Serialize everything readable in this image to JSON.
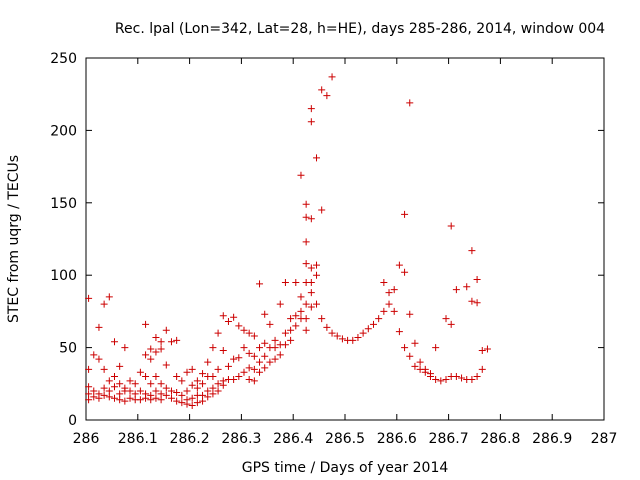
{
  "chart_data": {
    "type": "scatter",
    "title": "Rec. lpal (Lon=342, Lat=28, h=HE), days 285-286, 2014, window 004",
    "xlabel": "GPS time / Days of year 2014",
    "ylabel": "STEC from uqrg / TECUs",
    "xlim": [
      286,
      287
    ],
    "ylim": [
      0,
      250
    ],
    "xticks": [
      "286",
      "286.1",
      "286.2",
      "286.3",
      "286.4",
      "286.5",
      "286.6",
      "286.7",
      "286.8",
      "286.9",
      "287"
    ],
    "yticks": [
      "0",
      "50",
      "100",
      "150",
      "200",
      "250"
    ],
    "grid": false,
    "marker": "+",
    "color": "#cc0000",
    "points": [
      [
        286.005,
        84
      ],
      [
        286.005,
        35
      ],
      [
        286.005,
        23
      ],
      [
        286.005,
        18
      ],
      [
        286.005,
        14
      ],
      [
        286.015,
        45
      ],
      [
        286.015,
        20
      ],
      [
        286.015,
        16
      ],
      [
        286.025,
        64
      ],
      [
        286.025,
        42
      ],
      [
        286.025,
        18
      ],
      [
        286.025,
        15
      ],
      [
        286.035,
        80
      ],
      [
        286.035,
        35
      ],
      [
        286.035,
        22
      ],
      [
        286.035,
        17
      ],
      [
        286.045,
        85
      ],
      [
        286.045,
        27
      ],
      [
        286.045,
        20
      ],
      [
        286.045,
        16
      ],
      [
        286.055,
        54
      ],
      [
        286.055,
        30
      ],
      [
        286.055,
        23
      ],
      [
        286.055,
        15
      ],
      [
        286.065,
        37
      ],
      [
        286.065,
        25
      ],
      [
        286.065,
        18
      ],
      [
        286.065,
        14
      ],
      [
        286.075,
        50
      ],
      [
        286.075,
        22
      ],
      [
        286.075,
        20
      ],
      [
        286.075,
        13
      ],
      [
        286.085,
        27
      ],
      [
        286.085,
        20
      ],
      [
        286.085,
        15
      ],
      [
        286.095,
        25
      ],
      [
        286.095,
        18
      ],
      [
        286.095,
        14
      ],
      [
        286.105,
        33
      ],
      [
        286.105,
        20
      ],
      [
        286.105,
        14
      ],
      [
        286.115,
        66
      ],
      [
        286.115,
        45
      ],
      [
        286.115,
        30
      ],
      [
        286.115,
        18
      ],
      [
        286.115,
        15
      ],
      [
        286.125,
        49
      ],
      [
        286.125,
        42
      ],
      [
        286.125,
        25
      ],
      [
        286.125,
        17
      ],
      [
        286.125,
        14
      ],
      [
        286.135,
        57
      ],
      [
        286.135,
        47
      ],
      [
        286.135,
        30
      ],
      [
        286.135,
        20
      ],
      [
        286.135,
        15
      ],
      [
        286.145,
        54
      ],
      [
        286.145,
        49
      ],
      [
        286.145,
        25
      ],
      [
        286.145,
        18
      ],
      [
        286.145,
        14
      ],
      [
        286.155,
        62
      ],
      [
        286.155,
        38
      ],
      [
        286.155,
        22
      ],
      [
        286.155,
        17
      ],
      [
        286.165,
        54
      ],
      [
        286.165,
        20
      ],
      [
        286.165,
        15
      ],
      [
        286.175,
        55
      ],
      [
        286.175,
        30
      ],
      [
        286.175,
        19
      ],
      [
        286.175,
        13
      ],
      [
        286.185,
        27
      ],
      [
        286.185,
        17
      ],
      [
        286.185,
        12
      ],
      [
        286.195,
        33
      ],
      [
        286.195,
        20
      ],
      [
        286.195,
        14
      ],
      [
        286.195,
        11
      ],
      [
        286.205,
        35
      ],
      [
        286.205,
        24
      ],
      [
        286.205,
        15
      ],
      [
        286.205,
        10
      ],
      [
        286.215,
        27
      ],
      [
        286.215,
        22
      ],
      [
        286.215,
        17
      ],
      [
        286.215,
        12
      ],
      [
        286.225,
        32
      ],
      [
        286.225,
        25
      ],
      [
        286.225,
        17
      ],
      [
        286.225,
        13
      ],
      [
        286.235,
        40
      ],
      [
        286.235,
        30
      ],
      [
        286.235,
        20
      ],
      [
        286.235,
        16
      ],
      [
        286.245,
        50
      ],
      [
        286.245,
        30
      ],
      [
        286.245,
        22
      ],
      [
        286.245,
        18
      ],
      [
        286.255,
        60
      ],
      [
        286.255,
        35
      ],
      [
        286.255,
        25
      ],
      [
        286.255,
        20
      ],
      [
        286.265,
        72
      ],
      [
        286.265,
        48
      ],
      [
        286.265,
        27
      ],
      [
        286.265,
        24
      ],
      [
        286.275,
        68
      ],
      [
        286.275,
        37
      ],
      [
        286.275,
        28
      ],
      [
        286.285,
        71
      ],
      [
        286.285,
        42
      ],
      [
        286.285,
        28
      ],
      [
        286.295,
        65
      ],
      [
        286.295,
        43
      ],
      [
        286.295,
        30
      ],
      [
        286.305,
        62
      ],
      [
        286.305,
        50
      ],
      [
        286.305,
        33
      ],
      [
        286.315,
        60
      ],
      [
        286.315,
        46
      ],
      [
        286.315,
        36
      ],
      [
        286.315,
        28
      ],
      [
        286.325,
        58
      ],
      [
        286.325,
        44
      ],
      [
        286.325,
        35
      ],
      [
        286.325,
        27
      ],
      [
        286.335,
        94
      ],
      [
        286.335,
        50
      ],
      [
        286.335,
        40
      ],
      [
        286.335,
        33
      ],
      [
        286.345,
        73
      ],
      [
        286.345,
        53
      ],
      [
        286.345,
        44
      ],
      [
        286.345,
        36
      ],
      [
        286.355,
        66
      ],
      [
        286.355,
        50
      ],
      [
        286.355,
        40
      ],
      [
        286.365,
        55
      ],
      [
        286.365,
        50
      ],
      [
        286.365,
        42
      ],
      [
        286.375,
        80
      ],
      [
        286.375,
        52
      ],
      [
        286.375,
        45
      ],
      [
        286.385,
        95
      ],
      [
        286.385,
        60
      ],
      [
        286.385,
        52
      ],
      [
        286.395,
        70
      ],
      [
        286.395,
        62
      ],
      [
        286.395,
        55
      ],
      [
        286.405,
        95
      ],
      [
        286.405,
        72
      ],
      [
        286.405,
        65
      ],
      [
        286.415,
        169
      ],
      [
        286.415,
        85
      ],
      [
        286.415,
        75
      ],
      [
        286.415,
        70
      ],
      [
        286.425,
        149
      ],
      [
        286.425,
        140
      ],
      [
        286.425,
        123
      ],
      [
        286.425,
        108
      ],
      [
        286.425,
        95
      ],
      [
        286.425,
        80
      ],
      [
        286.425,
        70
      ],
      [
        286.425,
        62
      ],
      [
        286.435,
        215
      ],
      [
        286.435,
        206
      ],
      [
        286.435,
        139
      ],
      [
        286.435,
        105
      ],
      [
        286.435,
        95
      ],
      [
        286.435,
        88
      ],
      [
        286.435,
        78
      ],
      [
        286.445,
        181
      ],
      [
        286.445,
        107
      ],
      [
        286.445,
        100
      ],
      [
        286.445,
        80
      ],
      [
        286.455,
        228
      ],
      [
        286.455,
        145
      ],
      [
        286.455,
        70
      ],
      [
        286.465,
        224
      ],
      [
        286.465,
        64
      ],
      [
        286.475,
        237
      ],
      [
        286.475,
        60
      ],
      [
        286.485,
        58
      ],
      [
        286.495,
        56
      ],
      [
        286.505,
        55
      ],
      [
        286.515,
        55
      ],
      [
        286.525,
        57
      ],
      [
        286.535,
        60
      ],
      [
        286.545,
        63
      ],
      [
        286.555,
        66
      ],
      [
        286.565,
        70
      ],
      [
        286.575,
        75
      ],
      [
        286.575,
        95
      ],
      [
        286.585,
        80
      ],
      [
        286.585,
        88
      ],
      [
        286.595,
        90
      ],
      [
        286.595,
        75
      ],
      [
        286.605,
        107
      ],
      [
        286.605,
        61
      ],
      [
        286.615,
        102
      ],
      [
        286.615,
        142
      ],
      [
        286.615,
        50
      ],
      [
        286.625,
        219
      ],
      [
        286.625,
        73
      ],
      [
        286.625,
        44
      ],
      [
        286.635,
        53
      ],
      [
        286.635,
        37
      ],
      [
        286.645,
        40
      ],
      [
        286.645,
        35
      ],
      [
        286.655,
        35
      ],
      [
        286.655,
        33
      ],
      [
        286.665,
        32
      ],
      [
        286.665,
        30
      ],
      [
        286.675,
        28
      ],
      [
        286.675,
        50
      ],
      [
        286.685,
        27
      ],
      [
        286.695,
        70
      ],
      [
        286.695,
        28
      ],
      [
        286.705,
        66
      ],
      [
        286.705,
        134
      ],
      [
        286.705,
        30
      ],
      [
        286.715,
        90
      ],
      [
        286.715,
        30
      ],
      [
        286.725,
        29
      ],
      [
        286.735,
        92
      ],
      [
        286.735,
        28
      ],
      [
        286.745,
        117
      ],
      [
        286.745,
        82
      ],
      [
        286.745,
        28
      ],
      [
        286.755,
        97
      ],
      [
        286.755,
        81
      ],
      [
        286.755,
        30
      ],
      [
        286.765,
        35
      ],
      [
        286.765,
        48
      ],
      [
        286.775,
        49
      ]
    ]
  }
}
